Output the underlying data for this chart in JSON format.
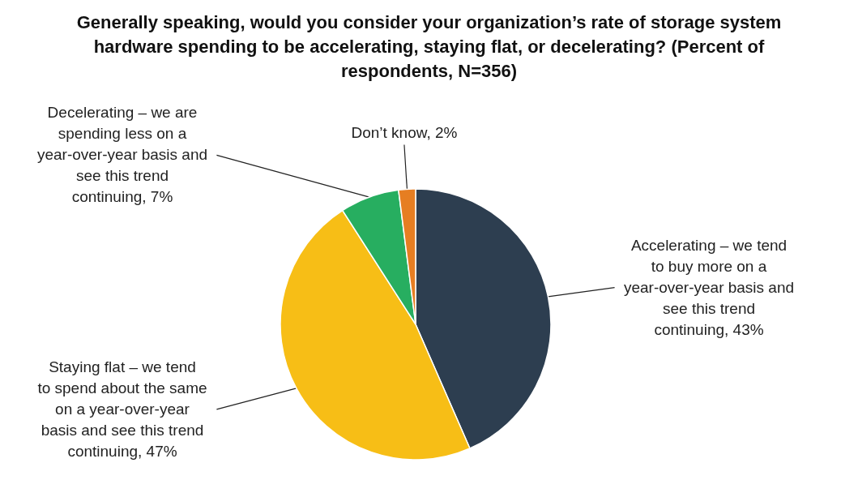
{
  "chart_data": {
    "type": "pie",
    "title": "Generally speaking, would you consider your organization’s rate of storage system hardware spending to be accelerating, staying flat, or decelerating? (Percent of respondents, N=356)",
    "categories": [
      "Accelerating – we tend to buy more on a year-over-year basis and see this trend continuing",
      "Staying flat – we tend to spend about the same on a year-over-year basis and see this trend continuing",
      "Decelerating – we are spending less on a year-over-year basis and see this trend continuing",
      "Don’t know"
    ],
    "values": [
      43,
      47,
      7,
      2
    ],
    "value_labels": [
      "43%",
      "47%",
      "7%",
      "2%"
    ],
    "colors": [
      "#2d3e50",
      "#f7be16",
      "#27ae60",
      "#e67e22"
    ],
    "legend": false
  }
}
